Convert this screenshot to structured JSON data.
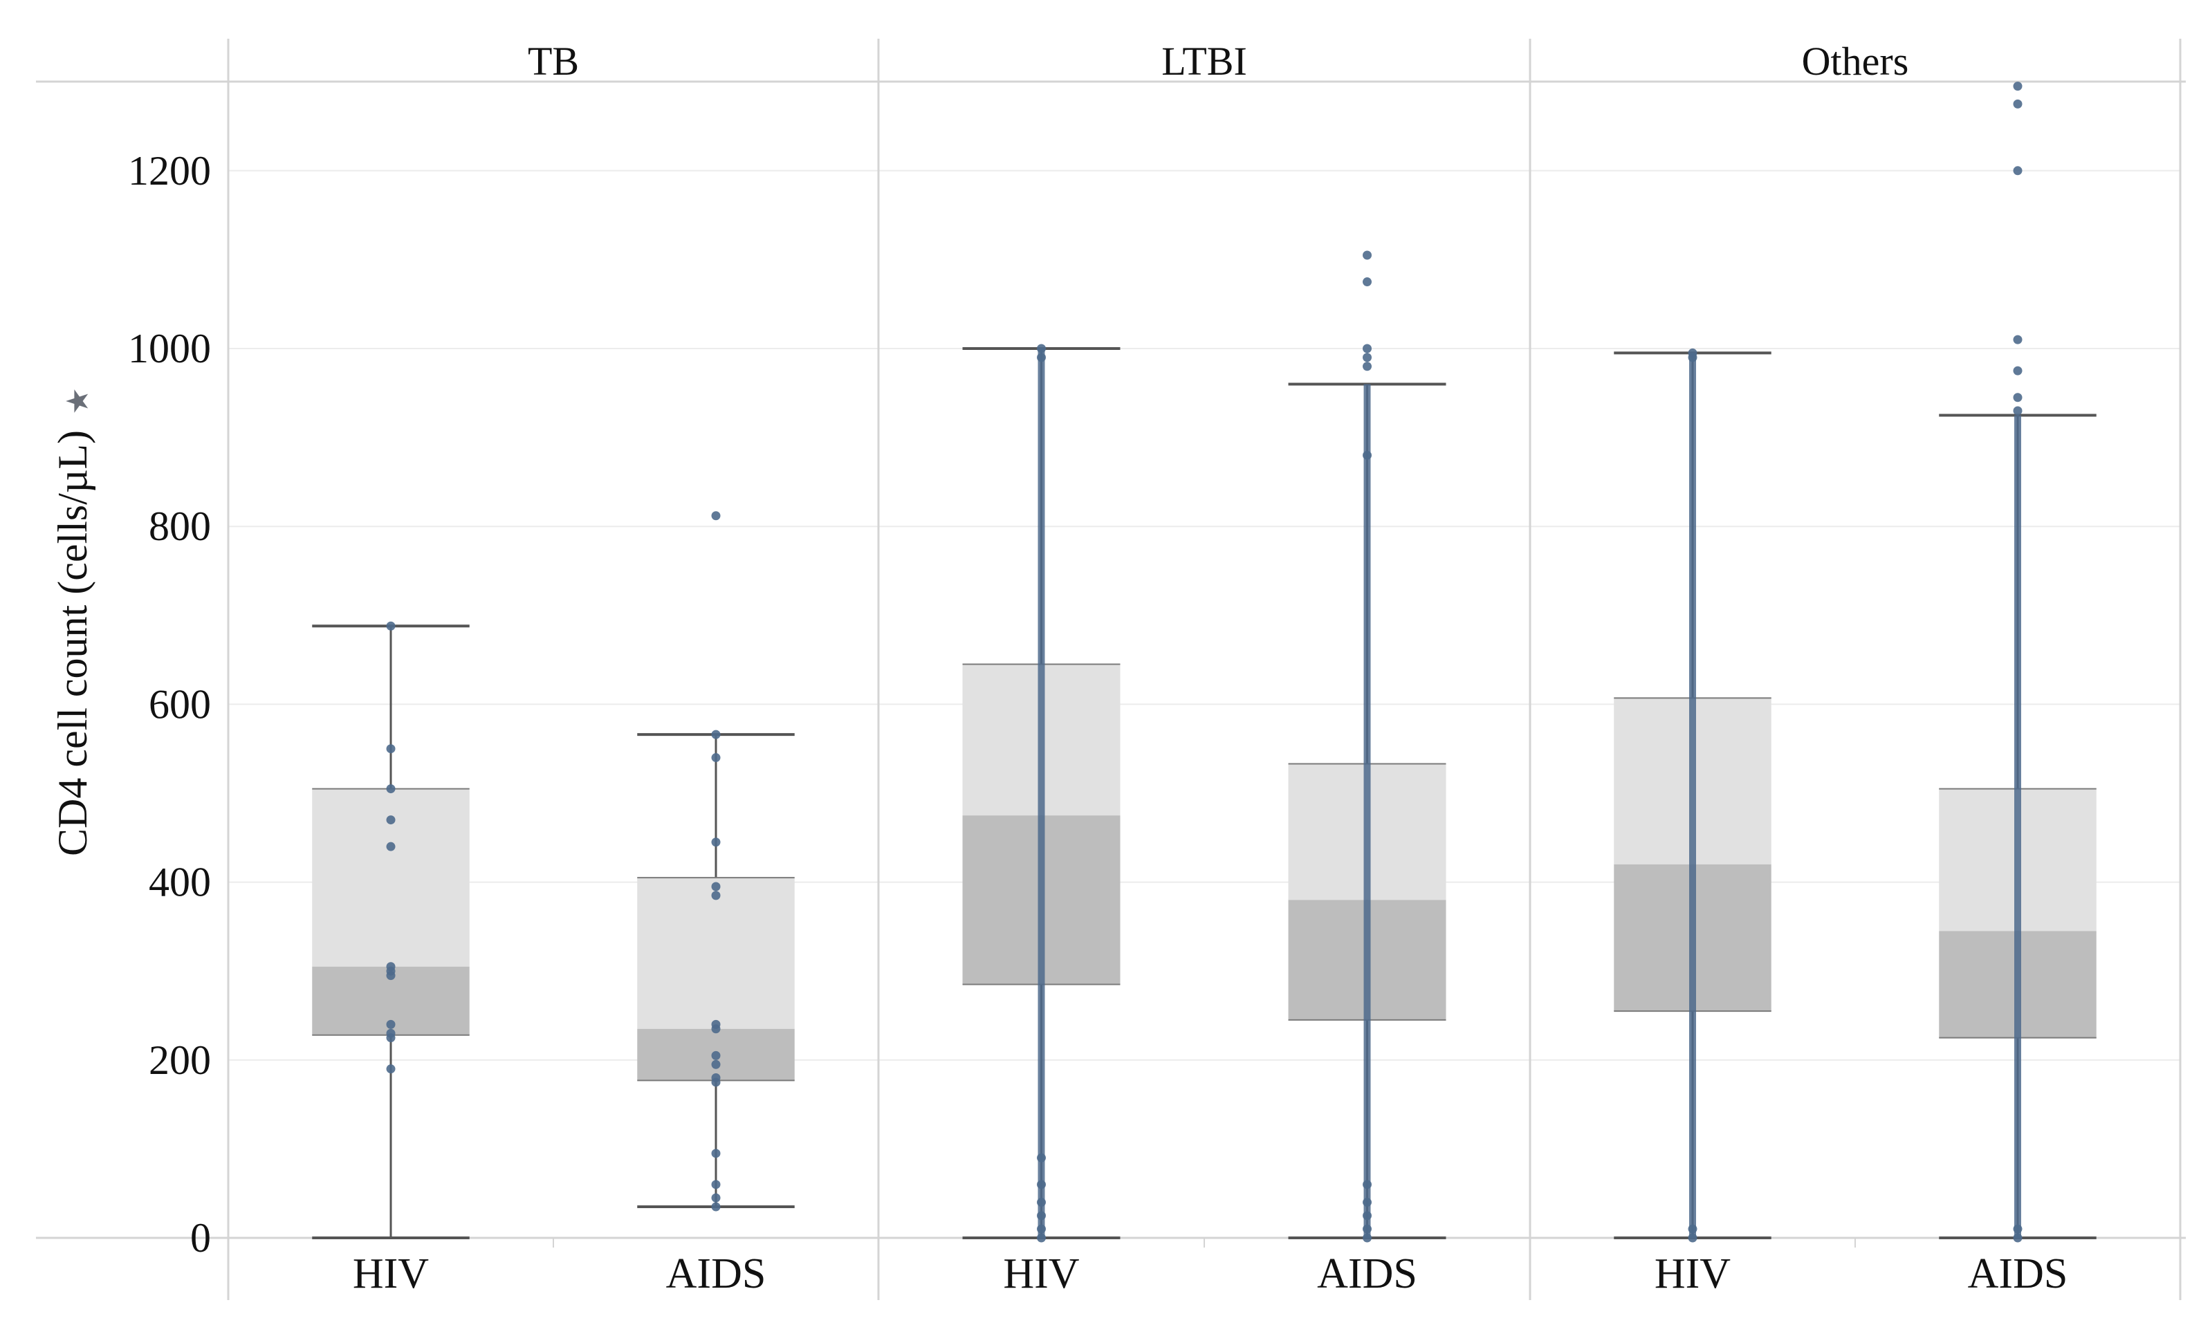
{
  "chart_data": {
    "type": "box",
    "ylabel": "CD4 cell count (cells/µL)",
    "ylabel_marker": "★",
    "ylim": [
      -30,
      1300
    ],
    "yticks": [
      0,
      200,
      400,
      600,
      800,
      1000,
      1200
    ],
    "grid": true,
    "panels": [
      {
        "title": "TB",
        "groups": [
          {
            "category": "HIV",
            "whisker_low": 0,
            "q1": 228,
            "median": 305,
            "q3": 505,
            "whisker_high": 688,
            "points": [
              190,
              225,
              230,
              240,
              295,
              300,
              305,
              440,
              470,
              505,
              550,
              688
            ]
          },
          {
            "category": "AIDS",
            "whisker_low": 35,
            "q1": 177,
            "median": 235,
            "q3": 405,
            "whisker_high": 566,
            "points": [
              35,
              45,
              60,
              95,
              175,
              180,
              195,
              205,
              235,
              240,
              385,
              395,
              445,
              540,
              566,
              812
            ]
          }
        ]
      },
      {
        "title": "LTBI",
        "groups": [
          {
            "category": "HIV",
            "whisker_low": 0,
            "q1": 285,
            "median": 475,
            "q3": 645,
            "whisker_high": 1000,
            "points": [
              0,
              10,
              25,
              40,
              60,
              90,
              990,
              1000
            ]
          },
          {
            "category": "AIDS",
            "whisker_low": 0,
            "q1": 245,
            "median": 380,
            "q3": 533,
            "whisker_high": 960,
            "points": [
              0,
              10,
              25,
              40,
              60,
              880,
              980,
              990,
              1000,
              1075,
              1105
            ]
          }
        ]
      },
      {
        "title": "Others",
        "groups": [
          {
            "category": "HIV",
            "whisker_low": 0,
            "q1": 255,
            "median": 420,
            "q3": 607,
            "whisker_high": 995,
            "points": [
              0,
              10,
              990,
              995
            ]
          },
          {
            "category": "AIDS",
            "whisker_low": 0,
            "q1": 225,
            "median": 345,
            "q3": 505,
            "whisker_high": 925,
            "points": [
              0,
              10,
              930,
              945,
              975,
              1010,
              1200,
              1275,
              1295
            ]
          }
        ]
      }
    ]
  },
  "colors": {
    "box_upper": "#e1e1e1",
    "box_lower": "#bdbdbd",
    "point": "#4e6a8c",
    "whisker": "#555555",
    "grid": "#ececec",
    "frame": "#d4d4d4"
  }
}
